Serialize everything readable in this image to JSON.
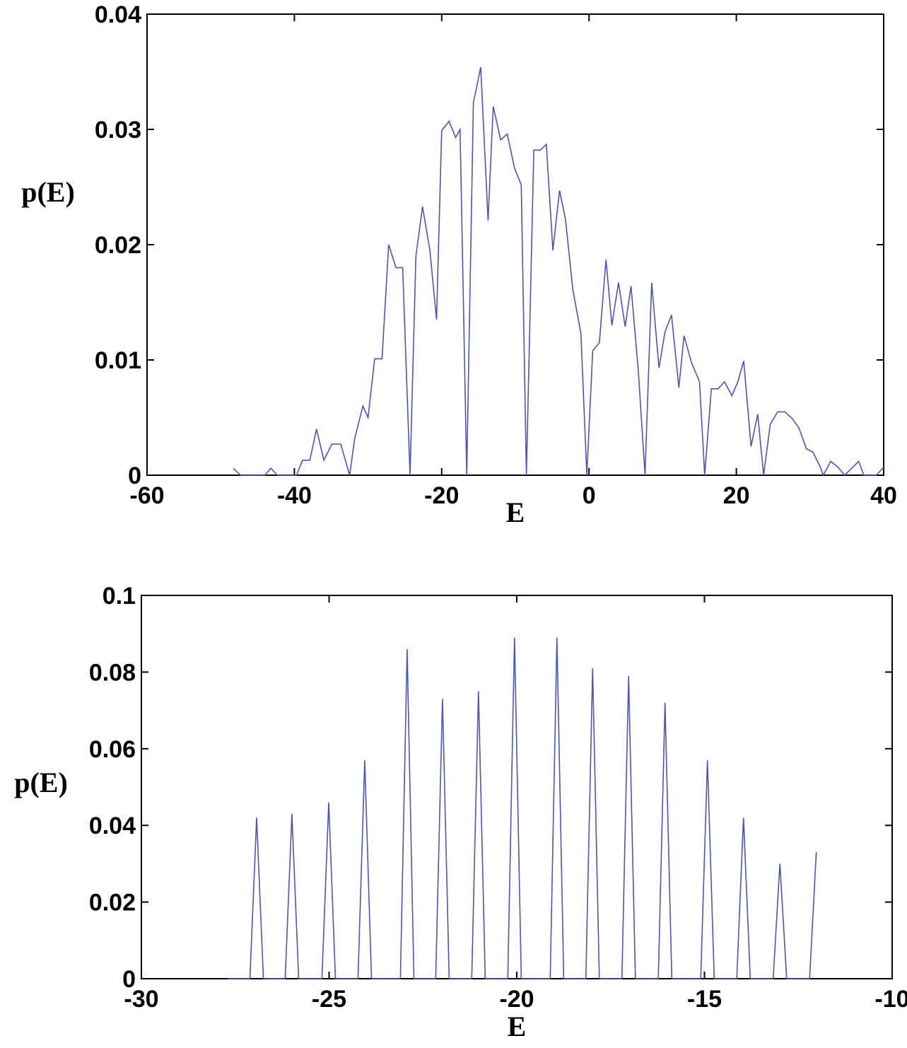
{
  "chart_data": [
    {
      "type": "line",
      "x_label": "E",
      "y_label": "p(E)",
      "xlim": [
        -60,
        40
      ],
      "ylim": [
        0,
        0.04
      ],
      "xticks": [
        -60,
        -40,
        -20,
        0,
        20,
        40
      ],
      "yticks": [
        0,
        0.01,
        0.02,
        0.03,
        0.04
      ],
      "series": [
        {
          "color": "#4b55bb",
          "x": [
            -48.3,
            -47.3,
            -44,
            -43.2,
            -42.3,
            -39.7,
            -38.9,
            -37.9,
            -37,
            -36,
            -34.9,
            -33.7,
            -32.5,
            -31.8,
            -30.7,
            -30,
            -29.1,
            -28.1,
            -27.2,
            -26.2,
            -25.3,
            -24.3,
            -23.5,
            -22.6,
            -21.6,
            -20.7,
            -20,
            -19,
            -18.1,
            -17.5,
            -16.6,
            -15.7,
            -14.7,
            -13.7,
            -13,
            -12,
            -11.1,
            -10.1,
            -9.2,
            -8.5,
            -7.5,
            -6.6,
            -5.8,
            -4.9,
            -4,
            -3.2,
            -2.2,
            -1.1,
            -0.3,
            0.5,
            1.4,
            2.3,
            3.1,
            4,
            4.9,
            5.7,
            6.7,
            7.6,
            8.5,
            9.5,
            10.3,
            11.2,
            12.2,
            12.9,
            13.9,
            15,
            15.7,
            16.6,
            17.5,
            18.4,
            19.4,
            20.2,
            21,
            22,
            22.9,
            23.7,
            24.6,
            25.6,
            26.6,
            27.6,
            28.5,
            29.5,
            30.4,
            31.4,
            31.8,
            32.8,
            33.8,
            34.7,
            36.6,
            37.3,
            39,
            40
          ],
          "values": [
            0.0006,
            0,
            0,
            0.0006,
            0,
            0,
            0.0013,
            0.0013,
            0.004,
            0.0013,
            0.0027,
            0.0027,
            0,
            0.0032,
            0.006,
            0.005,
            0.0101,
            0.0101,
            0.02,
            0.018,
            0.018,
            0,
            0.019,
            0.0233,
            0.0195,
            0.0135,
            0.0299,
            0.0307,
            0.0293,
            0.03,
            0,
            0.0323,
            0.0354,
            0.0221,
            0.032,
            0.0291,
            0.0296,
            0.0266,
            0.0252,
            0,
            0.0282,
            0.0282,
            0.0287,
            0.0195,
            0.0247,
            0.0222,
            0.0161,
            0.0123,
            0,
            0.0108,
            0.0115,
            0.0187,
            0.013,
            0.0167,
            0.0129,
            0.0164,
            0.009,
            0,
            0.0167,
            0.0093,
            0.0124,
            0.0139,
            0.0076,
            0.0121,
            0.0098,
            0.0081,
            0,
            0.0075,
            0.0075,
            0.0081,
            0.0069,
            0.0081,
            0.0099,
            0.0025,
            0.0053,
            0,
            0.0044,
            0.0055,
            0.0055,
            0.0049,
            0.0041,
            0.0023,
            0.002,
            0.0007,
            0,
            0.0012,
            0.0007,
            0,
            0.0012,
            0,
            0,
            0.0007
          ]
        }
      ]
    },
    {
      "type": "line",
      "x_label": "E",
      "y_label": "p(E)",
      "xlim": [
        -30,
        -10
      ],
      "ylim": [
        0,
        0.1
      ],
      "xticks": [
        -30,
        -25,
        -20,
        -15,
        -10
      ],
      "yticks": [
        0,
        0.02,
        0.04,
        0.06,
        0.08,
        0.1
      ],
      "series": [
        {
          "color": "#4b55bb",
          "x": [
            -27.7,
            -27.11,
            -26.93,
            -26.75,
            -26.17,
            -25.99,
            -25.81,
            -25.19,
            -25.01,
            -24.83,
            -24.23,
            -24.05,
            -23.87,
            -23.1,
            -22.92,
            -22.74,
            -22.16,
            -21.98,
            -21.8,
            -21.2,
            -21.02,
            -20.84,
            -20.24,
            -20.06,
            -19.88,
            -19.11,
            -18.93,
            -18.75,
            -18.16,
            -17.98,
            -17.8,
            -17.2,
            -17.02,
            -16.84,
            -16.23,
            -16.05,
            -15.87,
            -15.1,
            -14.92,
            -14.74,
            -14.14,
            -13.96,
            -13.78,
            -13.17,
            -12.99,
            -12.81,
            -12.2,
            -12.02
          ],
          "values": [
            0,
            0,
            0.042,
            0,
            0,
            0.043,
            0,
            0,
            0.046,
            0,
            0,
            0.057,
            0,
            0,
            0.086,
            0,
            0,
            0.073,
            0,
            0,
            0.075,
            0,
            0,
            0.089,
            0,
            0,
            0.089,
            0,
            0,
            0.081,
            0,
            0,
            0.079,
            0,
            0,
            0.072,
            0,
            0,
            0.057,
            0,
            0,
            0.042,
            0,
            0,
            0.03,
            0,
            0,
            0.033
          ]
        }
      ]
    }
  ]
}
